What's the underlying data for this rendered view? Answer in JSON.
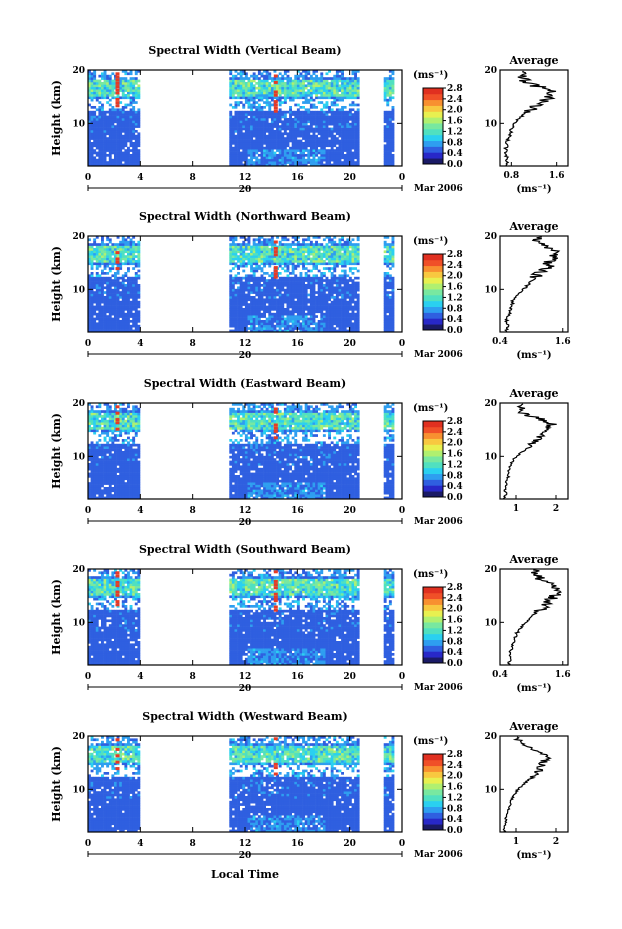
{
  "figure": {
    "xlabel": "Local Time",
    "date_label": "Mar 2006",
    "day_label": "20",
    "unit_label": "(ms⁻¹)",
    "avg_title": "Average"
  },
  "colorbar": {
    "ticks": [
      "2.8",
      "2.4",
      "2.0",
      "1.6",
      "1.2",
      "0.8",
      "0.4",
      "0.0"
    ],
    "colors": [
      "#1a1a66",
      "#2828c8",
      "#2f5fe0",
      "#2e9ef0",
      "#2ad0f0",
      "#50e0c0",
      "#78e8a0",
      "#b0f070",
      "#e8f050",
      "#f8c840",
      "#f89030",
      "#f05028",
      "#e03020"
    ]
  },
  "chart_data": [
    {
      "type": "heatmap",
      "title": "Spectral Width (Vertical Beam)",
      "ylabel": "Height (km)",
      "xlabel": "",
      "xlim": [
        0,
        24
      ],
      "ylim": [
        2,
        20
      ],
      "x_ticks": [
        "0",
        "4",
        "8",
        "12",
        "16",
        "20",
        "0"
      ],
      "y_ticks": [
        "20",
        "10"
      ],
      "data_segments_hours": [
        [
          0,
          3.8
        ],
        [
          10.8,
          20.6
        ],
        [
          22.6,
          23.3
        ]
      ],
      "colorbar_range": [
        0.0,
        2.8
      ],
      "average_profile": {
        "xlabel": "(ms⁻¹)",
        "x_ticks": [
          "0.8",
          "1.6"
        ],
        "xlim": [
          0.6,
          1.8
        ],
        "height_km": [
          2,
          3,
          4,
          5,
          6,
          7,
          8,
          9,
          10,
          11,
          12,
          13,
          14,
          15,
          16,
          17,
          18,
          19,
          20
        ],
        "spectral_width": [
          0.7,
          0.72,
          0.71,
          0.7,
          0.72,
          0.74,
          0.78,
          0.8,
          0.85,
          0.95,
          1.05,
          1.2,
          1.4,
          1.45,
          1.5,
          1.25,
          1.05,
          1.0,
          0.95
        ]
      }
    },
    {
      "type": "heatmap",
      "title": "Spectral Width (Northward Beam)",
      "ylabel": "Height (km)",
      "xlabel": "",
      "xlim": [
        0,
        24
      ],
      "ylim": [
        2,
        20
      ],
      "x_ticks": [
        "0",
        "4",
        "8",
        "12",
        "16",
        "20",
        "0"
      ],
      "y_ticks": [
        "20",
        "10"
      ],
      "data_segments_hours": [
        [
          0,
          3.8
        ],
        [
          10.8,
          20.6
        ],
        [
          22.6,
          23.3
        ]
      ],
      "colorbar_range": [
        0.0,
        2.8
      ],
      "average_profile": {
        "xlabel": "(ms⁻¹)",
        "x_ticks": [
          "0.4",
          "1.6"
        ],
        "xlim": [
          0.4,
          1.7
        ],
        "height_km": [
          2,
          3,
          4,
          5,
          6,
          7,
          8,
          9,
          10,
          11,
          12,
          13,
          14,
          15,
          16,
          17,
          18,
          19,
          20
        ],
        "spectral_width": [
          0.5,
          0.55,
          0.52,
          0.56,
          0.6,
          0.62,
          0.65,
          0.72,
          0.85,
          0.95,
          1.05,
          1.15,
          1.3,
          1.35,
          1.4,
          1.5,
          1.3,
          1.1,
          1.2
        ]
      }
    },
    {
      "type": "heatmap",
      "title": "Spectral Width (Eastward Beam)",
      "ylabel": "Height (km)",
      "xlabel": "",
      "xlim": [
        0,
        24
      ],
      "ylim": [
        2,
        20
      ],
      "x_ticks": [
        "0",
        "4",
        "8",
        "12",
        "16",
        "20",
        "0"
      ],
      "y_ticks": [
        "20",
        "10"
      ],
      "data_segments_hours": [
        [
          0,
          3.8
        ],
        [
          10.8,
          20.6
        ],
        [
          22.6,
          23.3
        ]
      ],
      "colorbar_range": [
        0.0,
        2.8
      ],
      "average_profile": {
        "xlabel": "",
        "x_ticks": [
          "1",
          "2"
        ],
        "xlim": [
          0.6,
          2.3
        ],
        "height_km": [
          2,
          3,
          4,
          5,
          6,
          7,
          8,
          9,
          10,
          11,
          12,
          13,
          14,
          15,
          16,
          17,
          18,
          19,
          20
        ],
        "spectral_width": [
          0.7,
          0.75,
          0.72,
          0.76,
          0.8,
          0.82,
          0.85,
          0.9,
          1.0,
          1.2,
          1.4,
          1.5,
          1.6,
          1.8,
          1.9,
          1.6,
          1.2,
          1.1,
          1.2
        ]
      }
    },
    {
      "type": "heatmap",
      "title": "Spectral Width (Southward Beam)",
      "ylabel": "Height (km)",
      "xlabel": "",
      "xlim": [
        0,
        24
      ],
      "ylim": [
        2,
        20
      ],
      "x_ticks": [
        "0",
        "4",
        "8",
        "12",
        "16",
        "20",
        "0"
      ],
      "y_ticks": [
        "20",
        "10"
      ],
      "data_segments_hours": [
        [
          0,
          3.8
        ],
        [
          10.8,
          20.6
        ],
        [
          22.6,
          23.3
        ]
      ],
      "colorbar_range": [
        0.0,
        2.8
      ],
      "average_profile": {
        "xlabel": "(ms⁻¹)",
        "x_ticks": [
          "0.4",
          "1.6"
        ],
        "xlim": [
          0.4,
          1.7
        ],
        "height_km": [
          2,
          3,
          4,
          5,
          6,
          7,
          8,
          9,
          10,
          11,
          12,
          13,
          14,
          15,
          16,
          17,
          18,
          19,
          20
        ],
        "spectral_width": [
          0.55,
          0.6,
          0.58,
          0.62,
          0.65,
          0.68,
          0.72,
          0.8,
          0.9,
          1.0,
          1.1,
          1.25,
          1.35,
          1.45,
          1.5,
          1.35,
          1.2,
          1.05,
          1.1
        ]
      }
    },
    {
      "type": "heatmap",
      "title": "Spectral Width (Westward Beam)",
      "ylabel": "Height (km)",
      "xlabel": "Local Time",
      "xlim": [
        0,
        24
      ],
      "ylim": [
        2,
        20
      ],
      "x_ticks": [
        "0",
        "4",
        "8",
        "12",
        "16",
        "20",
        "0"
      ],
      "y_ticks": [
        "20",
        "10"
      ],
      "data_segments_hours": [
        [
          0,
          3.8
        ],
        [
          10.8,
          20.6
        ],
        [
          22.6,
          23.3
        ]
      ],
      "colorbar_range": [
        0.0,
        2.8
      ],
      "average_profile": {
        "xlabel": "(ms⁻¹)",
        "x_ticks": [
          "1",
          "2"
        ],
        "xlim": [
          0.6,
          2.3
        ],
        "height_km": [
          2,
          3,
          4,
          5,
          6,
          7,
          8,
          9,
          10,
          11,
          12,
          13,
          14,
          15,
          16,
          17,
          18,
          19,
          20
        ],
        "spectral_width": [
          0.7,
          0.72,
          0.74,
          0.76,
          0.8,
          0.84,
          0.88,
          0.95,
          1.05,
          1.2,
          1.35,
          1.5,
          1.6,
          1.7,
          1.75,
          1.55,
          1.3,
          1.1,
          0.9
        ]
      }
    }
  ]
}
